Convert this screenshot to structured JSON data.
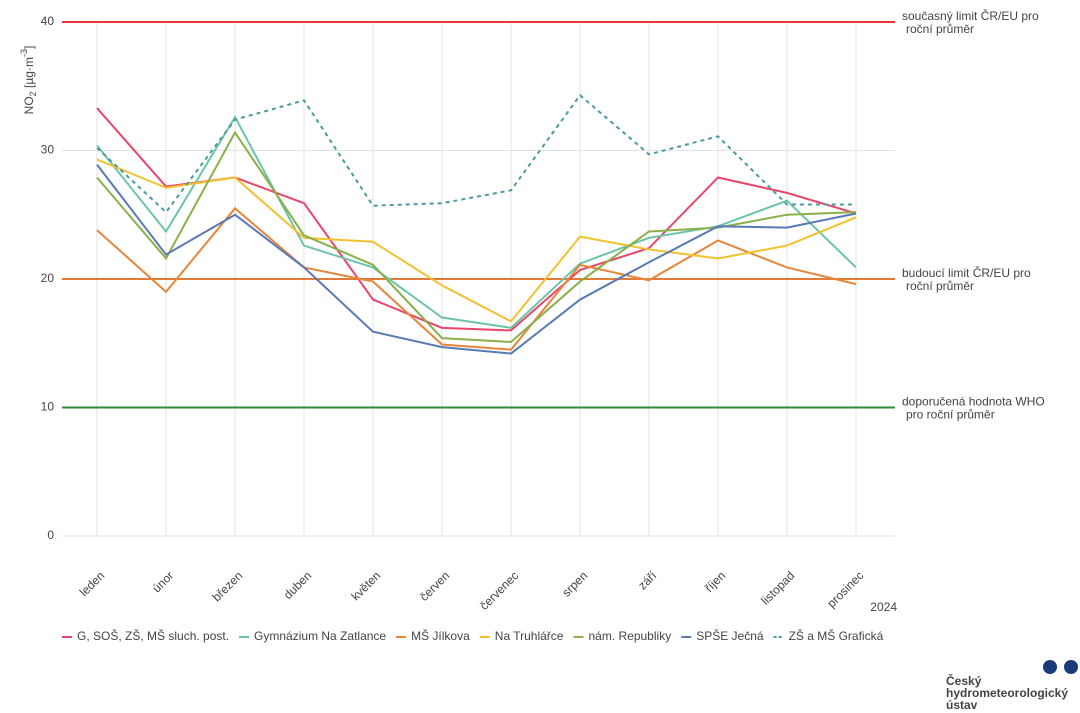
{
  "chart_data": {
    "type": "line",
    "y_label": {
      "main": "NO",
      "sub": "2",
      "unit": " [µg·m",
      "sup": "-3",
      "close": "]"
    },
    "x_label": "2024",
    "categories": [
      "leden",
      "únor",
      "březen",
      "duben",
      "květen",
      "červen",
      "červenec",
      "srpen",
      "září",
      "říjen",
      "listopad",
      "prosinec"
    ],
    "ylim": [
      0,
      40
    ],
    "yticks": [
      0,
      10,
      20,
      30,
      40
    ],
    "grid": true,
    "legend": "bottom",
    "reference_lines": [
      {
        "value": 40,
        "color": "#e53935",
        "label": [
          "současný limit ČR/EU pro",
          "roční průměr"
        ]
      },
      {
        "value": 20,
        "color": "#e07b39",
        "label": [
          "budoucí limit ČR/EU pro",
          "roční průměr"
        ]
      },
      {
        "value": 10,
        "color": "#2e8b3a",
        "label": [
          "doporučená hodnota WHO",
          "pro roční průměr"
        ]
      }
    ],
    "series": [
      {
        "name": "G, SOŠ, ZŠ, MŠ sluch. post.",
        "color": "#e8466a",
        "dashed": false,
        "values": [
          33.3,
          27.2,
          27.9,
          25.9,
          18.4,
          16.2,
          16.0,
          20.7,
          22.4,
          27.9,
          26.7,
          25.1
        ]
      },
      {
        "name": "Gymnázium Na Zatlance",
        "color": "#6cc4a8",
        "dashed": false,
        "values": [
          30.4,
          23.7,
          32.6,
          22.6,
          20.9,
          17.0,
          16.2,
          21.2,
          23.2,
          24.1,
          26.1,
          20.9
        ]
      },
      {
        "name": "MŠ Jílkova",
        "color": "#e6863b",
        "dashed": false,
        "values": [
          23.8,
          19.0,
          25.5,
          20.9,
          19.8,
          14.9,
          14.5,
          21.1,
          19.9,
          23.0,
          20.9,
          19.6
        ]
      },
      {
        "name": "Na Truhlářce",
        "color": "#f2c12e",
        "dashed": false,
        "values": [
          29.3,
          27.1,
          27.9,
          23.2,
          22.9,
          19.5,
          16.7,
          23.3,
          22.3,
          21.6,
          22.6,
          24.8
        ]
      },
      {
        "name": "nám. Republiky",
        "color": "#8ab04a",
        "dashed": false,
        "values": [
          27.9,
          21.6,
          31.4,
          23.4,
          21.1,
          15.4,
          15.1,
          19.8,
          23.7,
          24.0,
          25.0,
          25.2
        ]
      },
      {
        "name": "SPŠE Ječná",
        "color": "#5a7ab5",
        "dashed": false,
        "values": [
          28.9,
          21.9,
          25.0,
          20.9,
          15.9,
          14.7,
          14.2,
          18.4,
          21.3,
          24.1,
          24.0,
          25.1
        ]
      },
      {
        "name": "ZŠ a MŠ Grafická",
        "color": "#4a9aa0",
        "dashed": true,
        "values": [
          30.2,
          25.2,
          32.4,
          33.9,
          25.7,
          25.9,
          26.9,
          34.3,
          29.7,
          31.1,
          25.8,
          25.8
        ]
      }
    ]
  },
  "logo": [
    "Český",
    "hydrometeorologický",
    "ústav"
  ]
}
